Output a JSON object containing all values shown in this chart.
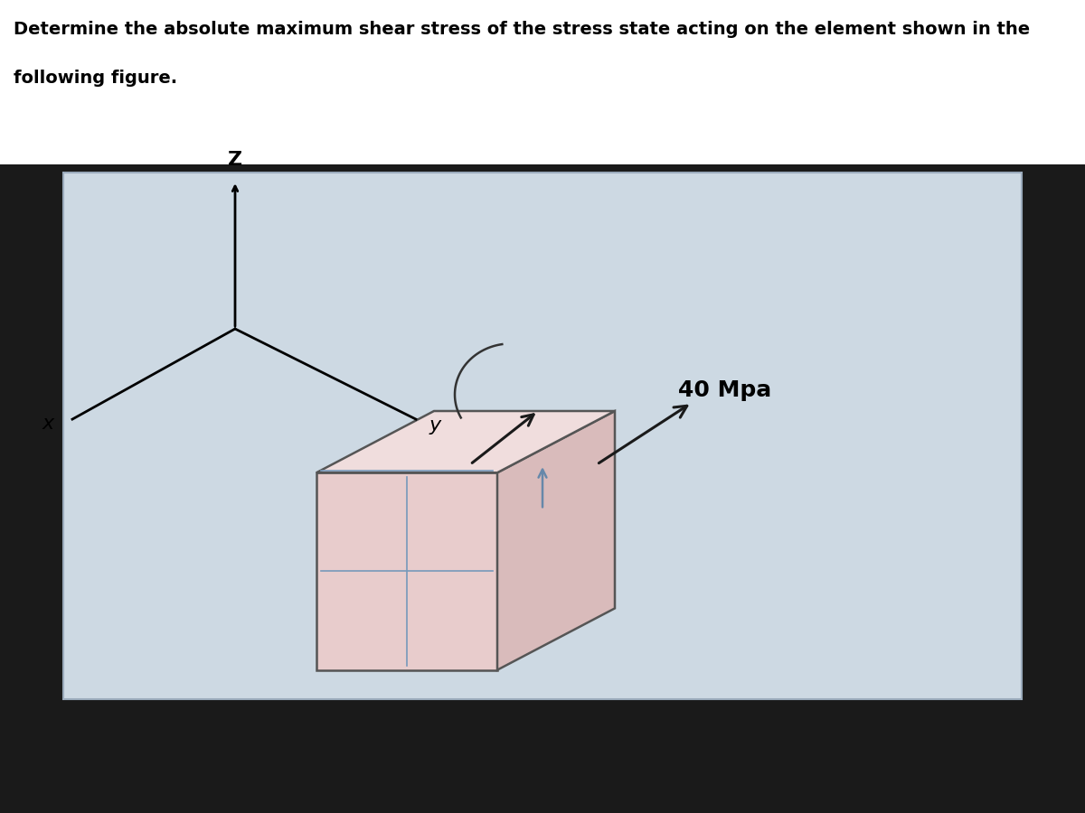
{
  "title_text": "Determine the absolute maximum shear stress of the stress state acting on the element shown in the",
  "title_line2": "following figure.",
  "stress_label": "40 Mpa",
  "text_color": "#000000",
  "axis_color": "#000000",
  "arrow_color": "#1a1a1a",
  "box_edge": "#555555",
  "title_fontsize": 14,
  "stress_fontsize": 18,
  "axis_label_fontsize": 16,
  "figure_bg": "#c8d5e0",
  "title_bg": "#ffffff",
  "inner_bg": "#c8d8e2"
}
